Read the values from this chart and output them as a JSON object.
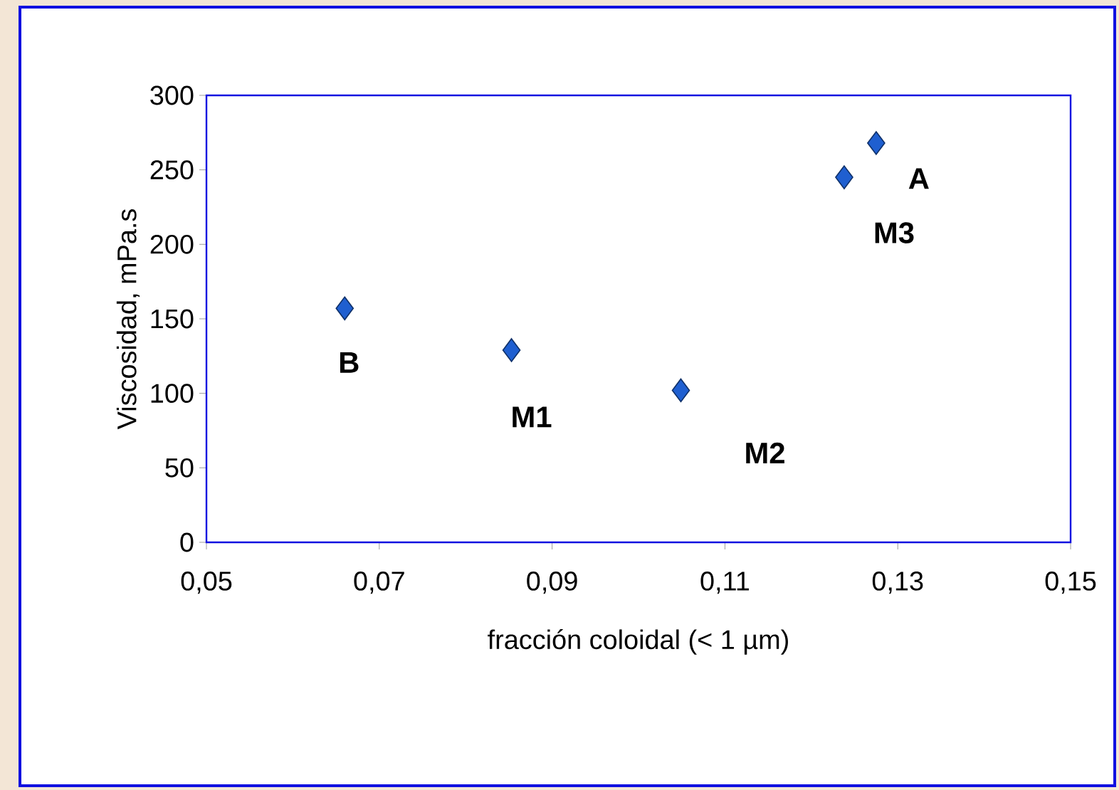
{
  "chart_data": {
    "type": "scatter",
    "xlabel": "fracción coloidal (< 1 µm)",
    "ylabel": "Viscosidad, mPa.s",
    "x": [
      0.066,
      0.0853,
      0.1049,
      0.1238,
      0.1275
    ],
    "series": [
      {
        "color": "#1f5fd0",
        "values": [
          157,
          129,
          102,
          245,
          268
        ]
      }
    ],
    "marker": "diamond",
    "xlim": [
      0.05,
      0.15
    ],
    "xticks": [
      {
        "value": 0.05,
        "label": "0,05"
      },
      {
        "value": 0.07,
        "label": "0,07"
      },
      {
        "value": 0.09,
        "label": "0,09"
      },
      {
        "value": 0.11,
        "label": "0,11"
      },
      {
        "value": 0.13,
        "label": "0,13"
      },
      {
        "value": 0.15,
        "label": "0,15"
      }
    ],
    "ylim": [
      0,
      300
    ],
    "yticks": [
      0,
      50,
      100,
      150,
      200,
      250,
      300
    ],
    "annotations": [
      {
        "text": "B",
        "x": 0.066,
        "y": 157
      },
      {
        "text": "M1",
        "x": 0.0853,
        "y": 129
      },
      {
        "text": "M2",
        "x": 0.1049,
        "y": 102
      },
      {
        "text": "M3",
        "x": 0.1238,
        "y": 245
      },
      {
        "text": "A",
        "x": 0.1275,
        "y": 268
      }
    ]
  }
}
